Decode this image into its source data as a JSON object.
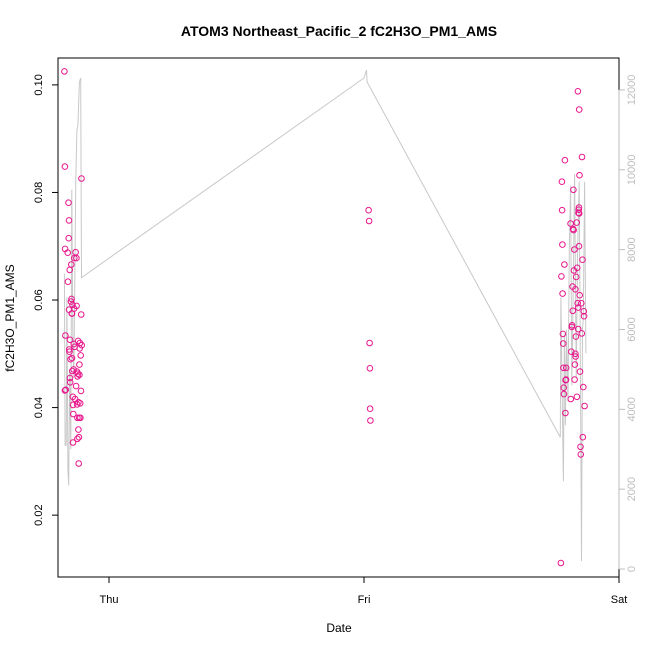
{
  "chart_data": {
    "type": "scatter",
    "title": "ATOM3 Northeast_Pacific_2 fC2H3O_PM1_AMS",
    "xlabel": "Date",
    "ylabel": "fC2H3O_PM1_AMS",
    "x_ticks": [
      {
        "label": "Thu",
        "value": 0
      },
      {
        "label": "Fri",
        "value": 1
      },
      {
        "label": "Sat",
        "value": 2
      }
    ],
    "xlim": [
      -0.2,
      2.0
    ],
    "ylim": [
      0.0085,
      0.105
    ],
    "y_ticks": [
      0.02,
      0.04,
      0.06,
      0.08,
      0.1
    ],
    "y2lim": [
      -200,
      12800
    ],
    "y2_ticks": [
      0,
      2000,
      4000,
      6000,
      8000,
      10000,
      12000
    ],
    "grid": false,
    "colors": {
      "points": "#e8168c",
      "line": "#c8c8c8",
      "axis": "#000000",
      "right_axis": "#bdbdbd"
    },
    "series": [
      {
        "marker": "open-circle",
        "axis": "left",
        "points": [
          [
            -0.175,
            0.1025
          ],
          [
            -0.173,
            0.0848
          ],
          [
            -0.171,
            0.0534
          ],
          [
            -0.173,
            0.0432
          ],
          [
            -0.172,
            0.0695
          ],
          [
            -0.17,
            0.0433
          ],
          [
            -0.162,
            0.0688
          ],
          [
            -0.161,
            0.0634
          ],
          [
            -0.159,
            0.0781
          ],
          [
            -0.157,
            0.0748
          ],
          [
            -0.158,
            0.0715
          ],
          [
            -0.157,
            0.0582
          ],
          [
            -0.156,
            0.0508
          ],
          [
            -0.155,
            0.0504
          ],
          [
            -0.154,
            0.0656
          ],
          [
            -0.153,
            0.0526
          ],
          [
            -0.153,
            0.0455
          ],
          [
            -0.152,
            0.0447
          ],
          [
            -0.151,
            0.049
          ],
          [
            -0.149,
            0.0597
          ],
          [
            -0.148,
            0.0666
          ],
          [
            -0.147,
            0.0602
          ],
          [
            -0.146,
            0.0575
          ],
          [
            -0.145,
            0.0575
          ],
          [
            -0.145,
            0.0492
          ],
          [
            -0.144,
            0.0468
          ],
          [
            -0.143,
            0.0591
          ],
          [
            -0.142,
            0.042
          ],
          [
            -0.141,
            0.0405
          ],
          [
            -0.141,
            0.0335
          ],
          [
            -0.14,
            0.0388
          ],
          [
            -0.139,
            0.0471
          ],
          [
            -0.138,
            0.0518
          ],
          [
            -0.137,
            0.0584
          ],
          [
            -0.136,
            0.0678
          ],
          [
            -0.135,
            0.0513
          ],
          [
            -0.133,
            0.0416
          ],
          [
            -0.131,
            0.0689
          ],
          [
            -0.129,
            0.044
          ],
          [
            -0.128,
            0.0678
          ],
          [
            -0.127,
            0.0589
          ],
          [
            -0.126,
            0.0467
          ],
          [
            -0.125,
            0.0406
          ],
          [
            -0.124,
            0.0381
          ],
          [
            -0.124,
            0.0342
          ],
          [
            -0.123,
            0.0458
          ],
          [
            -0.122,
            0.0463
          ],
          [
            -0.121,
            0.0524
          ],
          [
            -0.12,
            0.041
          ],
          [
            -0.12,
            0.0359
          ],
          [
            -0.119,
            0.0296
          ],
          [
            -0.118,
            0.0345
          ],
          [
            -0.117,
            0.0381
          ],
          [
            -0.116,
            0.0461
          ],
          [
            -0.116,
            0.048
          ],
          [
            -0.115,
            0.051
          ],
          [
            -0.114,
            0.052
          ],
          [
            -0.113,
            0.0408
          ],
          [
            -0.112,
            0.0381
          ],
          [
            -0.111,
            0.0497
          ],
          [
            -0.11,
            0.0431
          ],
          [
            -0.109,
            0.0573
          ],
          [
            -0.108,
            0.0826
          ],
          [
            -0.107,
            0.0516
          ],
          [
            1.018,
            0.0767
          ],
          [
            1.02,
            0.0747
          ],
          [
            1.022,
            0.052
          ],
          [
            1.023,
            0.0473
          ],
          [
            1.024,
            0.0398
          ],
          [
            1.025,
            0.0376
          ],
          [
            1.772,
            0.0111
          ],
          [
            1.774,
            0.0644
          ],
          [
            1.776,
            0.082
          ],
          [
            1.777,
            0.0767
          ],
          [
            1.778,
            0.0703
          ],
          [
            1.779,
            0.0612
          ],
          [
            1.78,
            0.0537
          ],
          [
            1.781,
            0.0519
          ],
          [
            1.782,
            0.0474
          ],
          [
            1.783,
            0.0437
          ],
          [
            1.784,
            0.0425
          ],
          [
            1.786,
            0.0666
          ],
          [
            1.788,
            0.086
          ],
          [
            1.79,
            0.039
          ],
          [
            1.791,
            0.0451
          ],
          [
            1.792,
            0.0452
          ],
          [
            1.793,
            0.0474
          ],
          [
            1.81,
            0.0742
          ],
          [
            1.811,
            0.0416
          ],
          [
            1.813,
            0.0504
          ],
          [
            1.815,
            0.055
          ],
          [
            1.816,
            0.0553
          ],
          [
            1.818,
            0.0625
          ],
          [
            1.819,
            0.058
          ],
          [
            1.82,
            0.0732
          ],
          [
            1.821,
            0.0805
          ],
          [
            1.822,
            0.073
          ],
          [
            1.823,
            0.0655
          ],
          [
            1.825,
            0.0694
          ],
          [
            1.826,
            0.0452
          ],
          [
            1.827,
            0.048
          ],
          [
            1.829,
            0.05
          ],
          [
            1.83,
            0.0495
          ],
          [
            1.832,
            0.0643
          ],
          [
            1.834,
            0.0744
          ],
          [
            1.835,
            0.042
          ],
          [
            1.836,
            0.066
          ],
          [
            1.838,
            0.0594
          ],
          [
            1.839,
            0.0988
          ],
          [
            1.84,
            0.0546
          ],
          [
            1.842,
            0.0768
          ],
          [
            1.843,
            0.07
          ],
          [
            1.844,
            0.0954
          ],
          [
            1.845,
            0.0832
          ],
          [
            1.846,
            0.0609
          ],
          [
            1.847,
            0.0467
          ],
          [
            1.849,
            0.0327
          ],
          [
            1.85,
            0.0313
          ],
          [
            1.852,
            0.0594
          ],
          [
            1.854,
            0.0538
          ],
          [
            1.855,
            0.0866
          ],
          [
            1.857,
            0.0675
          ],
          [
            1.858,
            0.0345
          ],
          [
            1.86,
            0.0438
          ],
          [
            1.862,
            0.0579
          ],
          [
            1.863,
            0.057
          ],
          [
            1.865,
            0.0403
          ],
          [
            1.843,
            0.0772
          ],
          [
            1.844,
            0.0761
          ],
          [
            1.831,
            0.0532
          ],
          [
            1.829,
            0.062
          ],
          [
            1.84,
            0.0586
          ],
          [
            1.841,
            0.0762
          ]
        ]
      },
      {
        "marker": "line",
        "axis": "right",
        "points": [
          [
            -0.175,
            7400
          ],
          [
            -0.172,
            3100
          ],
          [
            -0.168,
            3100
          ],
          [
            -0.165,
            6800
          ],
          [
            -0.161,
            2500
          ],
          [
            -0.158,
            2100
          ],
          [
            -0.154,
            5000
          ],
          [
            -0.15,
            3000
          ],
          [
            -0.146,
            9500
          ],
          [
            -0.142,
            6000
          ],
          [
            -0.138,
            4800
          ],
          [
            -0.134,
            7200
          ],
          [
            -0.13,
            9800
          ],
          [
            -0.126,
            11000
          ],
          [
            -0.122,
            11100
          ],
          [
            -0.116,
            12200
          ],
          [
            -0.111,
            12300
          ],
          [
            -0.108,
            7300
          ],
          [
            1.0,
            12300
          ],
          [
            1.01,
            12500
          ],
          [
            1.012,
            12200
          ],
          [
            1.77,
            3300
          ],
          [
            1.772,
            6800
          ],
          [
            1.778,
            4000
          ],
          [
            1.782,
            2200
          ],
          [
            1.786,
            5900
          ],
          [
            1.79,
            3600
          ],
          [
            1.794,
            6000
          ],
          [
            1.8,
            4200
          ],
          [
            1.805,
            8000
          ],
          [
            1.81,
            9600
          ],
          [
            1.815,
            4600
          ],
          [
            1.82,
            6800
          ],
          [
            1.826,
            9900
          ],
          [
            1.832,
            4800
          ],
          [
            1.838,
            8100
          ],
          [
            1.844,
            9700
          ],
          [
            1.85,
            3300
          ],
          [
            1.853,
            200
          ],
          [
            1.857,
            6000
          ],
          [
            1.86,
            6300
          ],
          [
            1.865,
            9700
          ],
          [
            1.87,
            5400
          ]
        ]
      }
    ]
  }
}
